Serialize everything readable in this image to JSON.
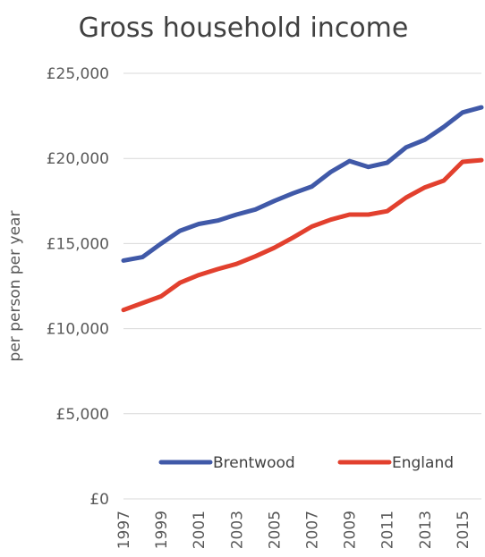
{
  "chart_data": {
    "type": "line",
    "title": "Gross household income",
    "ylabel": "per person per year",
    "xlabel": "",
    "x": [
      1997,
      1998,
      1999,
      2000,
      2001,
      2002,
      2003,
      2004,
      2005,
      2006,
      2007,
      2008,
      2009,
      2010,
      2011,
      2012,
      2013,
      2014,
      2015,
      2016
    ],
    "x_tick_labels": [
      "1997",
      "1999",
      "2001",
      "2003",
      "2005",
      "2007",
      "2009",
      "2011",
      "2013",
      "2015"
    ],
    "y_tick_labels": [
      "£0",
      "£5,000",
      "£10,000",
      "£15,000",
      "£20,000",
      "£25,000"
    ],
    "ylim": [
      0,
      25000
    ],
    "grid": true,
    "legend_position": "bottom",
    "series": [
      {
        "name": "Brentwood",
        "color": "#4059a8",
        "values": [
          14000,
          14200,
          15000,
          15750,
          16150,
          16350,
          16700,
          17000,
          17500,
          17950,
          18350,
          19200,
          19850,
          19500,
          19750,
          20650,
          21100,
          21850,
          22700,
          23000
        ]
      },
      {
        "name": "England",
        "color": "#e2402e",
        "values": [
          11100,
          11500,
          11900,
          12700,
          13150,
          13500,
          13800,
          14250,
          14750,
          15350,
          16000,
          16400,
          16700,
          16700,
          16900,
          17700,
          18300,
          18700,
          19800,
          19900
        ]
      }
    ]
  }
}
